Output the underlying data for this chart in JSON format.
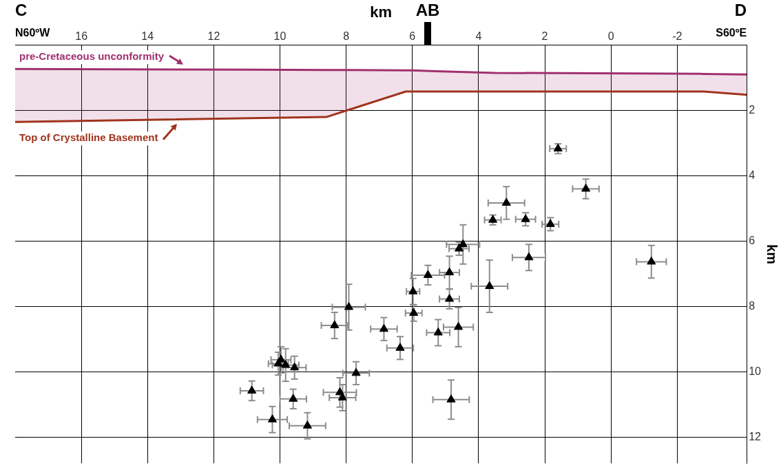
{
  "chart_data": {
    "type": "scatter",
    "xlabel": "km",
    "ylabel": "km",
    "annotations": [
      "C",
      "N60ºW",
      "AB",
      "D",
      "S60ºE"
    ],
    "xlim": [
      18,
      -4.1
    ],
    "xticks": [
      16,
      14,
      12,
      10,
      8,
      6,
      4,
      2,
      0,
      -2
    ],
    "ylim": [
      12.8,
      0
    ],
    "yticks": [
      2,
      4,
      6,
      8,
      10,
      12
    ],
    "grid": true,
    "legend": "top left",
    "marker": "triangle",
    "series": [
      {
        "type": "line",
        "name": "pre-Cretaceous unconformity",
        "color": "#a0306e",
        "marker": "none",
        "x": [
          18,
          10.8,
          8.6,
          6.2,
          6,
          5.3,
          3.5,
          -1.8,
          -2.8,
          -4.1
        ],
        "values": [
          0.73,
          0.75,
          0.76,
          0.77,
          0.77,
          0.8,
          0.85,
          0.87,
          0.88,
          0.9
        ],
        "lower": [
          0.73,
          0.75,
          0.76,
          0.77,
          0.77,
          0.8,
          0.85,
          0.87,
          0.88,
          0.9
        ],
        "upper": [
          2.35,
          2.24,
          2.2,
          1.42,
          1.42,
          1.42,
          1.42,
          1.42,
          1.42,
          1.52
        ]
      },
      {
        "type": "line",
        "name": "Top of Crystalline Basement",
        "color": "#a0341e",
        "marker": "none",
        "x": [
          18,
          8.6,
          6.2,
          -2.8,
          -4.1
        ],
        "values": [
          2.35,
          2.2,
          1.42,
          1.42,
          1.52
        ]
      },
      {
        "color": "#000000",
        "x": [
          1.6,
          0.76,
          3.16,
          3.57,
          2.58,
          1.83,
          4.47,
          4.59,
          2.48,
          -1.22,
          3.67,
          5.53,
          4.88,
          5.98,
          4.88,
          5.96,
          7.92,
          8.35,
          6.86,
          6.37,
          5.22,
          4.61,
          7.7,
          10.05,
          9.97,
          9.83,
          9.56,
          10.85,
          9.6,
          8.19,
          8.11,
          4.83,
          10.23,
          9.17
        ],
        "values": [
          3.17,
          4.4,
          4.83,
          5.35,
          5.33,
          5.48,
          6.1,
          6.23,
          6.5,
          6.63,
          7.38,
          7.04,
          6.96,
          7.54,
          7.77,
          8.2,
          8.02,
          8.58,
          8.69,
          9.27,
          8.8,
          8.63,
          10.04,
          9.75,
          9.63,
          9.79,
          9.87,
          10.58,
          10.83,
          10.63,
          10.79,
          10.85,
          11.46,
          11.65
        ],
        "errors": [
          0.15,
          0.3,
          0.5,
          0.15,
          0.2,
          0.2,
          0.6,
          0.2,
          0.4,
          0.5,
          0.8,
          0.3,
          0.5,
          0.4,
          0.3,
          0.25,
          0.7,
          0.4,
          0.35,
          0.35,
          0.4,
          0.6,
          0.35,
          0.35,
          0.4,
          0.5,
          0.35,
          0.3,
          0.3,
          0.45,
          0.4,
          0.6,
          0.4,
          0.4
        ],
        "xerrors": [
          0.25,
          0.4,
          0.55,
          0.25,
          0.3,
          0.25,
          0.5,
          0.3,
          0.5,
          0.45,
          0.55,
          0.5,
          0.3,
          0.2,
          0.3,
          0.25,
          0.5,
          0.4,
          0.4,
          0.4,
          0.35,
          0.45,
          0.4,
          0.3,
          0.3,
          0.4,
          0.35,
          0.35,
          0.4,
          0.5,
          0.4,
          0.55,
          0.45,
          0.55
        ]
      }
    ]
  }
}
